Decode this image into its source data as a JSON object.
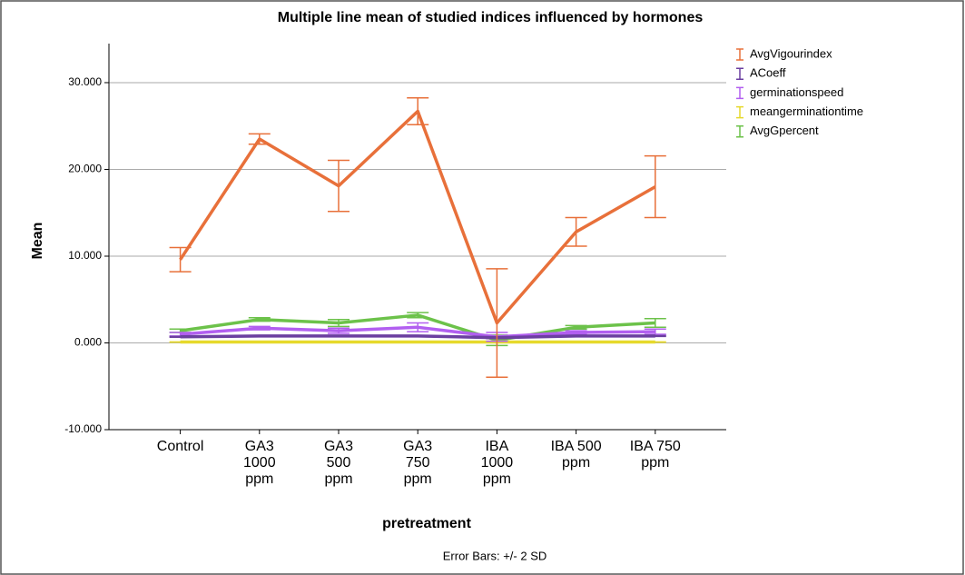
{
  "chart_data": {
    "type": "line",
    "title": "Multiple line mean of studied indices influenced by hormones",
    "x_label": "pretreatment",
    "y_label": "Mean",
    "note": "Error Bars: +/- 2 SD",
    "categories": [
      "Control",
      "GA3\n1000\nppm",
      "GA3\n500\nppm",
      "GA3\n750\nppm",
      "IBA\n1000\nppm",
      "IBA 500\nppm",
      "IBA 750\nppm"
    ],
    "ylim": [
      -10,
      34.5
    ],
    "yticks": [
      {
        "value": -10,
        "label": "-10.000"
      },
      {
        "value": 0,
        "label": "0.000"
      },
      {
        "value": 10,
        "label": "10.000"
      },
      {
        "value": 20,
        "label": "20.000"
      },
      {
        "value": 30,
        "label": "30.000"
      }
    ],
    "grid": true,
    "legend": "right",
    "series": [
      {
        "name": "AvgVigourindex",
        "color": "#e8703a",
        "values": [
          9.6,
          23.5,
          18.1,
          26.7,
          2.3,
          12.8,
          18.0
        ],
        "errors": [
          1.4,
          0.6,
          2.95,
          1.55,
          6.25,
          1.65,
          3.55
        ]
      },
      {
        "name": "ACoeff",
        "color": "#6b3fa0",
        "values": [
          0.7,
          0.8,
          0.8,
          0.8,
          0.6,
          0.8,
          0.8
        ],
        "errors": [
          0.05,
          0.05,
          0.05,
          0.05,
          0.1,
          0.05,
          0.05
        ]
      },
      {
        "name": "germinationspeed",
        "color": "#b25ff0",
        "values": [
          1.0,
          1.7,
          1.4,
          1.8,
          0.7,
          1.2,
          1.3
        ],
        "errors": [
          0.2,
          0.2,
          0.3,
          0.5,
          0.5,
          0.2,
          0.3
        ]
      },
      {
        "name": "meangerminationtime",
        "color": "#e6d92c",
        "values": [
          0.1,
          0.1,
          0.1,
          0.1,
          0.1,
          0.1,
          0.1
        ],
        "errors": [
          0.02,
          0.02,
          0.02,
          0.02,
          0.02,
          0.02,
          0.02
        ]
      },
      {
        "name": "AvgGpercent",
        "color": "#6cc24a",
        "values": [
          1.4,
          2.7,
          2.3,
          3.2,
          0.3,
          1.8,
          2.3
        ],
        "errors": [
          0.2,
          0.2,
          0.4,
          0.3,
          0.6,
          0.2,
          0.5
        ]
      }
    ]
  }
}
